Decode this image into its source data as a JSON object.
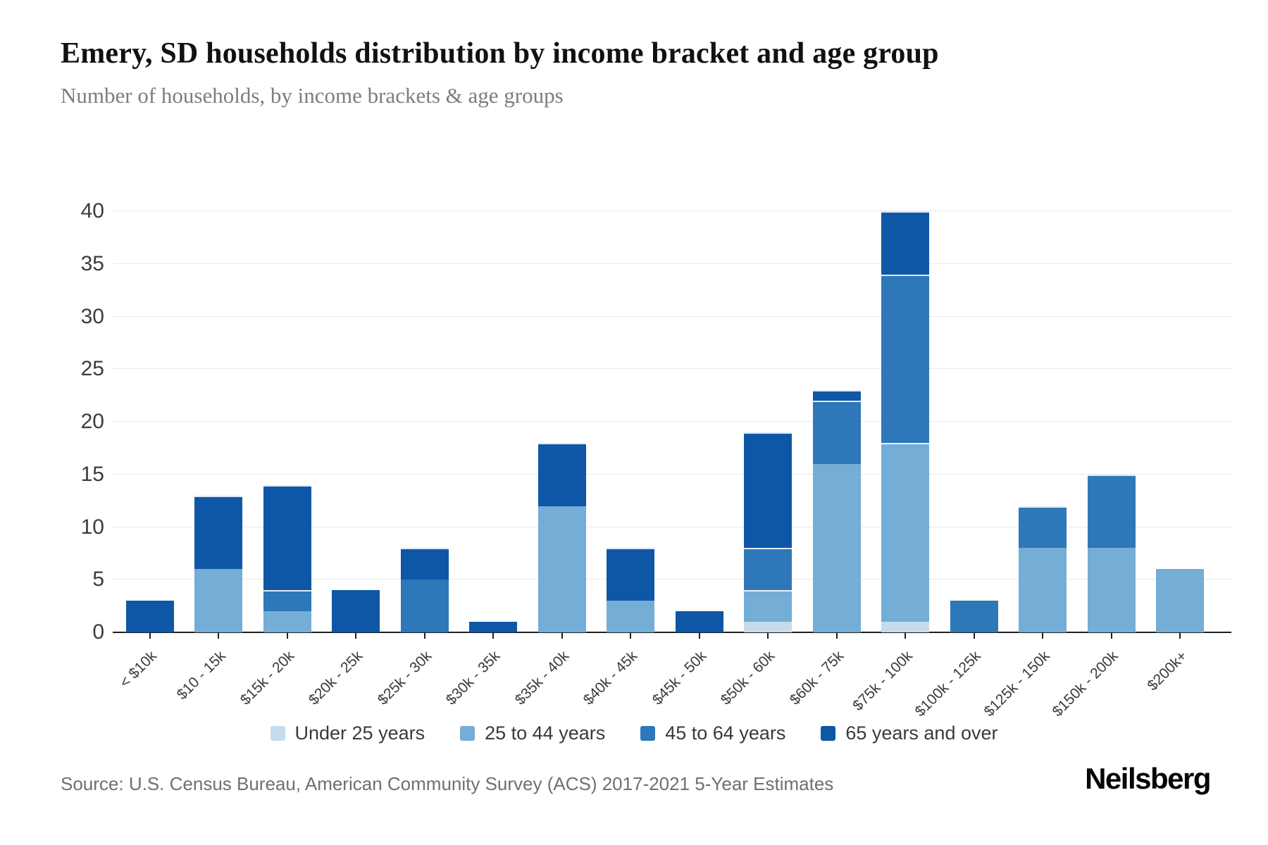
{
  "header": {
    "title": "Emery, SD households distribution by income bracket and age group",
    "subtitle": "Number of households, by income brackets & age groups"
  },
  "chart_data": {
    "type": "bar",
    "stacked": true,
    "title": "Emery, SD households distribution by income bracket and age group",
    "subtitle": "Number of households, by income brackets & age groups",
    "xlabel": "",
    "ylabel": "",
    "ylim": [
      0,
      40
    ],
    "yticks": [
      0,
      5,
      10,
      15,
      20,
      25,
      30,
      35,
      40
    ],
    "grid": true,
    "legend_position": "bottom",
    "categories": [
      "< $10k",
      "$10 - 15k",
      "$15k - 20k",
      "$20k - 25k",
      "$25k - 30k",
      "$30k - 35k",
      "$35k - 40k",
      "$40k - 45k",
      "$45k - 50k",
      "$50k - 60k",
      "$60k - 75k",
      "$75k - 100k",
      "$100k - 125k",
      "$125k - 150k",
      "$150k - 200k",
      "$200k+"
    ],
    "series": [
      {
        "name": "Under 25 years",
        "color": "#c6dcec",
        "values": [
          0,
          0,
          0,
          0,
          0,
          0,
          0,
          0,
          0,
          1,
          0,
          1,
          0,
          0,
          0,
          0
        ]
      },
      {
        "name": "25 to 44 years",
        "color": "#74add6",
        "values": [
          0,
          6,
          2,
          0,
          0,
          0,
          12,
          3,
          0,
          3,
          16,
          17,
          0,
          8,
          8,
          6
        ]
      },
      {
        "name": "45 to 64 years",
        "color": "#2e77b8",
        "values": [
          0,
          0,
          2,
          0,
          5,
          0,
          0,
          0,
          0,
          4,
          6,
          16,
          3,
          4,
          7,
          0
        ]
      },
      {
        "name": "65 years and over",
        "color": "#0e57a6",
        "values": [
          3,
          7,
          10,
          4,
          3,
          1,
          6,
          5,
          2,
          11,
          1,
          6,
          0,
          0,
          0,
          0
        ]
      }
    ],
    "totals": [
      3,
      13,
      14,
      4,
      8,
      1,
      18,
      8,
      2,
      19,
      23,
      40,
      3,
      12,
      15,
      6
    ]
  },
  "footer": {
    "source": "Source: U.S. Census Bureau, American Community Survey (ACS) 2017-2021 5-Year Estimates",
    "logo": "Neilsberg"
  }
}
